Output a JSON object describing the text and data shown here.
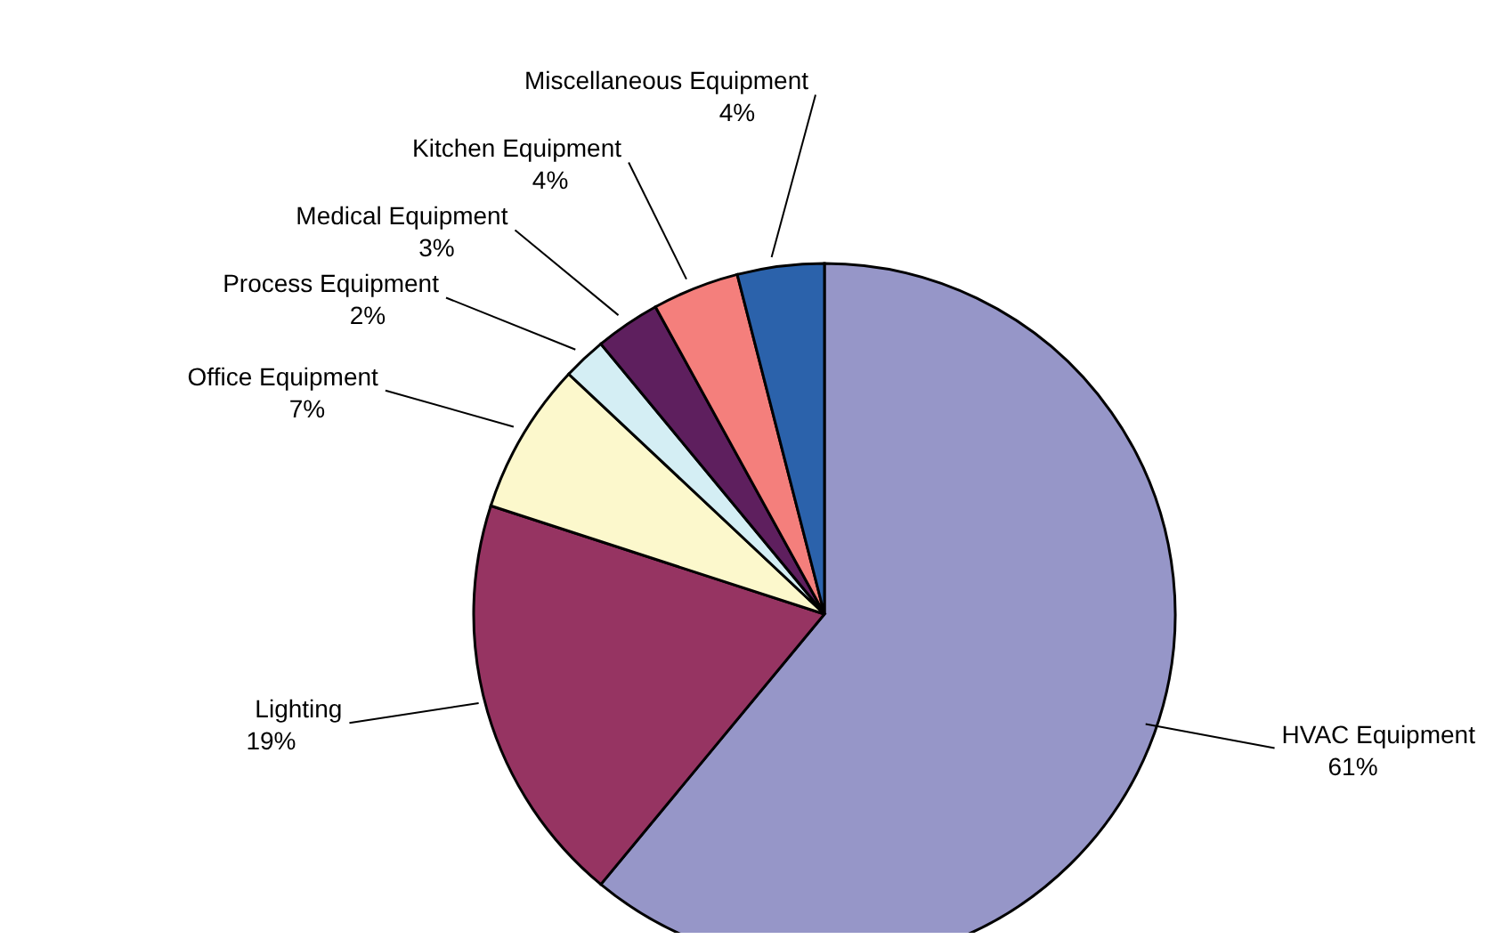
{
  "chart_data": {
    "type": "pie",
    "categories": [
      "HVAC Equipment",
      "Lighting",
      "Office Equipment",
      "Process Equipment",
      "Medical Equipment",
      "Kitchen Equipment",
      "Miscellaneous Equipment"
    ],
    "values": [
      61,
      19,
      7,
      2,
      3,
      4,
      4
    ],
    "value_labels": [
      "61%",
      "19%",
      "7%",
      "2%",
      "3%",
      "4%",
      "4%"
    ],
    "colors": [
      "#9696c8",
      "#963462",
      "#fcf8cc",
      "#d4eef4",
      "#5e1f5e",
      "#f47f7c",
      "#2b62ab"
    ],
    "legend": false
  }
}
